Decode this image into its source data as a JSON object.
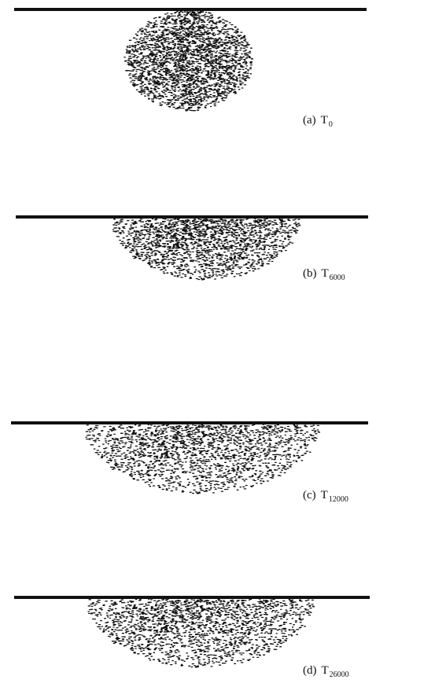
{
  "panels": [
    {
      "tag": "(a)",
      "symbol": "T",
      "subscript": "0"
    },
    {
      "tag": "(b)",
      "symbol": "T",
      "subscript": "6000"
    },
    {
      "tag": "(c)",
      "symbol": "T",
      "subscript": "12000"
    },
    {
      "tag": "(d)",
      "symbol": "T",
      "subscript": "26000"
    }
  ]
}
